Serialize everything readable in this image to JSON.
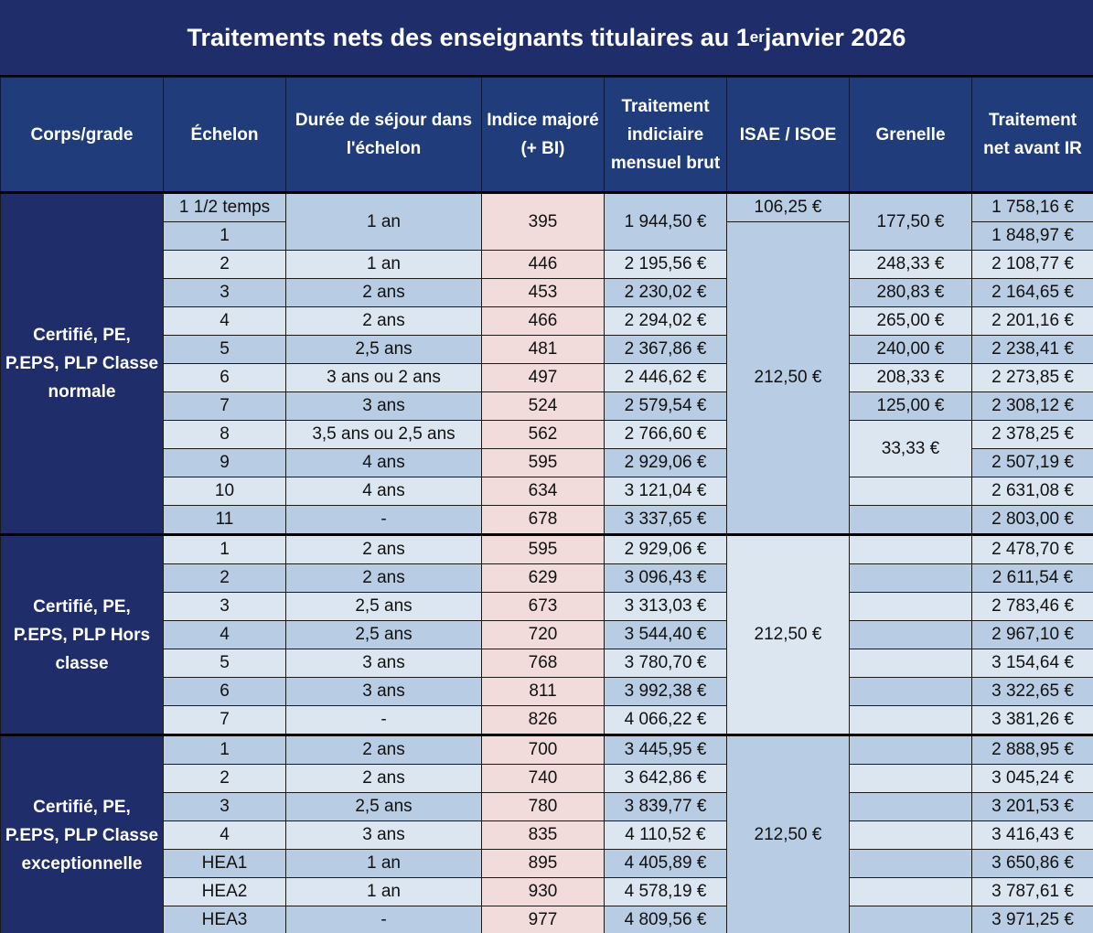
{
  "title": {
    "main": "Traitements nets des enseignants titulaires au 1",
    "sup": "er",
    "end": " janvier 2026"
  },
  "headers": [
    "Corps/grade",
    "Échelon",
    "Durée de séjour dans l'échelon",
    "Indice majoré (+ BI)",
    "Traitement indiciaire mensuel brut",
    "ISAE / ISOE",
    "Grenelle",
    "Traitement net avant IR"
  ],
  "groups": [
    {
      "label": "Certifié, PE, P.EPS, PLP Classe normale",
      "rows": [
        [
          "1 1/2 temps",
          "1 an",
          "395",
          "1 944,50 €",
          "106,25 €",
          "177,50 €",
          "1 758,16 €"
        ],
        [
          "1",
          null,
          null,
          null,
          "212,50 €",
          null,
          "1 848,97 €"
        ],
        [
          "2",
          "1 an",
          "446",
          "2 195,56 €",
          null,
          "248,33 €",
          "2 108,77 €"
        ],
        [
          "3",
          "2 ans",
          "453",
          "2 230,02 €",
          null,
          "280,83 €",
          "2 164,65 €"
        ],
        [
          "4",
          "2 ans",
          "466",
          "2 294,02 €",
          null,
          "265,00 €",
          "2 201,16 €"
        ],
        [
          "5",
          "2,5 ans",
          "481",
          "2 367,86 €",
          null,
          "240,00 €",
          "2 238,41 €"
        ],
        [
          "6",
          "3 ans ou 2 ans",
          "497",
          "2 446,62 €",
          null,
          "208,33 €",
          "2 273,85 €"
        ],
        [
          "7",
          "3 ans",
          "524",
          "2 579,54 €",
          null,
          "125,00 €",
          "2 308,12 €"
        ],
        [
          "8",
          "3,5 ans ou 2,5 ans",
          "562",
          "2 766,60 €",
          null,
          "33,33 €",
          "2 378,25 €"
        ],
        [
          "9",
          "4 ans",
          "595",
          "2 929,06 €",
          null,
          null,
          "2 507,19 €"
        ],
        [
          "10",
          "4 ans",
          "634",
          "3 121,04 €",
          null,
          "",
          "2 631,08 €"
        ],
        [
          "11",
          "-",
          "678",
          "3 337,65 €",
          null,
          "",
          "2 803,00 €"
        ]
      ]
    },
    {
      "label": "Certifié, PE, P.EPS, PLP Hors classe",
      "rows": [
        [
          "1",
          "2 ans",
          "595",
          "2 929,06 €",
          "212,50 €",
          "",
          "2 478,70 €"
        ],
        [
          "2",
          "2 ans",
          "629",
          "3 096,43 €",
          null,
          "",
          "2 611,54 €"
        ],
        [
          "3",
          "2,5 ans",
          "673",
          "3 313,03 €",
          null,
          "",
          "2 783,46 €"
        ],
        [
          "4",
          "2,5 ans",
          "720",
          "3 544,40 €",
          null,
          "",
          "2 967,10 €"
        ],
        [
          "5",
          "3 ans",
          "768",
          "3 780,70 €",
          null,
          "",
          "3 154,64 €"
        ],
        [
          "6",
          "3 ans",
          "811",
          "3 992,38 €",
          null,
          "",
          "3 322,65 €"
        ],
        [
          "7",
          "-",
          "826",
          "4 066,22 €",
          null,
          "",
          "3 381,26 €"
        ]
      ]
    },
    {
      "label": "Certifié, PE, P.EPS, PLP Classe exceptionnelle",
      "rows": [
        [
          "1",
          "2 ans",
          "700",
          "3 445,95 €",
          "212,50 €",
          "",
          "2 888,95 €"
        ],
        [
          "2",
          "2 ans",
          "740",
          "3 642,86 €",
          null,
          "",
          "3 045,24 €"
        ],
        [
          "3",
          "2,5 ans",
          "780",
          "3 839,77 €",
          null,
          "",
          "3 201,53 €"
        ],
        [
          "4",
          "3 ans",
          "835",
          "4 110,52 €",
          null,
          "",
          "3 416,43 €"
        ],
        [
          "HEA1",
          "1 an",
          "895",
          "4 405,89 €",
          null,
          "",
          "3 650,86 €"
        ],
        [
          "HEA2",
          "1 an",
          "930",
          "4 578,19 €",
          null,
          "",
          "3 787,61 €"
        ],
        [
          "HEA3",
          "-",
          "977",
          "4 809,56 €",
          null,
          "",
          "3 971,25 €"
        ]
      ]
    }
  ]
}
